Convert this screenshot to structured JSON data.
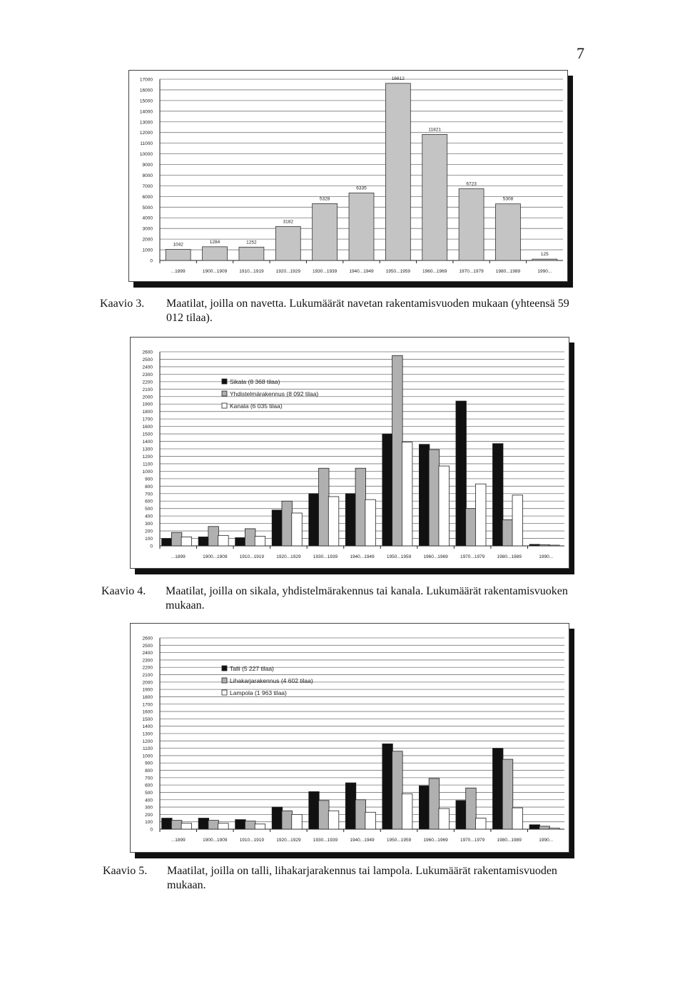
{
  "page_number": "7",
  "captions": [
    {
      "label": "Kaavio 3.",
      "text": "Maatilat, joilla on navetta. Lukumäärät navetan rakentamisvuoden mukaan (yhteensä 59 012 tilaa)."
    },
    {
      "label": "Kaavio 4.",
      "text": "Maatilat, joilla on sikala, yhdistelmärakennus tai kanala. Lukumäärät rakentamisvuoken mukaan."
    },
    {
      "label": "Kaavio 5.",
      "text": "Maatilat, joilla on talli, lihakarjarakennus tai lampola. Lukumäärät rakentamisvuoden mukaan."
    }
  ],
  "chart_data": [
    {
      "type": "bar",
      "categories": [
        "...1899",
        "1900...1909",
        "1910...1919",
        "1920...1929",
        "1930...1939",
        "1940...1949",
        "1950...1959",
        "1960...1969",
        "1970...1979",
        "1980...1989",
        "1990..."
      ],
      "values": [
        1042,
        1284,
        1252,
        3182,
        5328,
        6335,
        16612,
        11821,
        6723,
        5308,
        125
      ],
      "data_labels": [
        "1042",
        "1284",
        "1252",
        "3182",
        "5328",
        "6335",
        "16612",
        "11821",
        "6723",
        "5308",
        "125"
      ],
      "y_ticks": [
        "0",
        "1000",
        "2000",
        "3000",
        "4000",
        "5000",
        "6000",
        "7000",
        "8000",
        "9000",
        "10000",
        "11000",
        "12000",
        "13000",
        "14000",
        "15000",
        "16000",
        "17000"
      ],
      "ylim": [
        0,
        17000
      ],
      "grid": true,
      "colors": {
        "bar": "#c4c4c4"
      }
    },
    {
      "type": "bar",
      "categories": [
        "...1899",
        "1900...1909",
        "1910...1919",
        "1920...1929",
        "1930...1939",
        "1940...1949",
        "1950...1959",
        "1960...1969",
        "1970...1979",
        "1980...1989",
        "1990..."
      ],
      "series": [
        {
          "name": "Sikala (8 368 tilaa)",
          "values": [
            100,
            120,
            110,
            480,
            700,
            700,
            1500,
            1360,
            1940,
            1370,
            20
          ]
        },
        {
          "name": "Yhdistelmärakennus (8 092 tilaa)",
          "values": [
            180,
            260,
            230,
            600,
            1040,
            1040,
            2550,
            1290,
            500,
            350,
            15
          ]
        },
        {
          "name": "Kanala (6 035 tilaa)",
          "values": [
            120,
            140,
            130,
            440,
            660,
            620,
            1390,
            1070,
            830,
            680,
            10
          ]
        }
      ],
      "y_ticks": [
        "0",
        "100",
        "200",
        "300",
        "400",
        "500",
        "600",
        "700",
        "800",
        "900",
        "1000",
        "1100",
        "1200",
        "1300",
        "1400",
        "1500",
        "1600",
        "1700",
        "1800",
        "1900",
        "2000",
        "2100",
        "2200",
        "2300",
        "2400",
        "2500",
        "2600"
      ],
      "ylim": [
        0,
        2600
      ],
      "legend_position": "upper-left",
      "grid": true,
      "colors": {
        "series": [
          "#111111",
          "#b0b0b0",
          "#ffffff"
        ]
      }
    },
    {
      "type": "bar",
      "categories": [
        "...1899",
        "1900...1909",
        "1910...1919",
        "1920...1929",
        "1930...1939",
        "1940...1949",
        "1950...1959",
        "1960...1969",
        "1970...1979",
        "1980...1989",
        "1990..."
      ],
      "series": [
        {
          "name": "Talli (5 227 tilaa)",
          "values": [
            150,
            150,
            130,
            300,
            510,
            630,
            1160,
            590,
            390,
            1100,
            60
          ]
        },
        {
          "name": "Lihakarjarakennus (4 602 tilaa)",
          "values": [
            120,
            120,
            110,
            250,
            390,
            400,
            1060,
            690,
            560,
            950,
            40
          ]
        },
        {
          "name": "Lampola (1 963 tilaa)",
          "values": [
            80,
            80,
            70,
            200,
            250,
            230,
            480,
            280,
            150,
            290,
            15
          ]
        }
      ],
      "y_ticks": [
        "0",
        "100",
        "200",
        "300",
        "400",
        "500",
        "600",
        "700",
        "800",
        "900",
        "1000",
        "1100",
        "1200",
        "1300",
        "1400",
        "1500",
        "1600",
        "1700",
        "1800",
        "1900",
        "2000",
        "2100",
        "2200",
        "2300",
        "2400",
        "2500",
        "2600"
      ],
      "ylim": [
        0,
        2600
      ],
      "legend_position": "upper-left",
      "grid": true,
      "colors": {
        "series": [
          "#111111",
          "#b0b0b0",
          "#ffffff"
        ]
      }
    }
  ]
}
